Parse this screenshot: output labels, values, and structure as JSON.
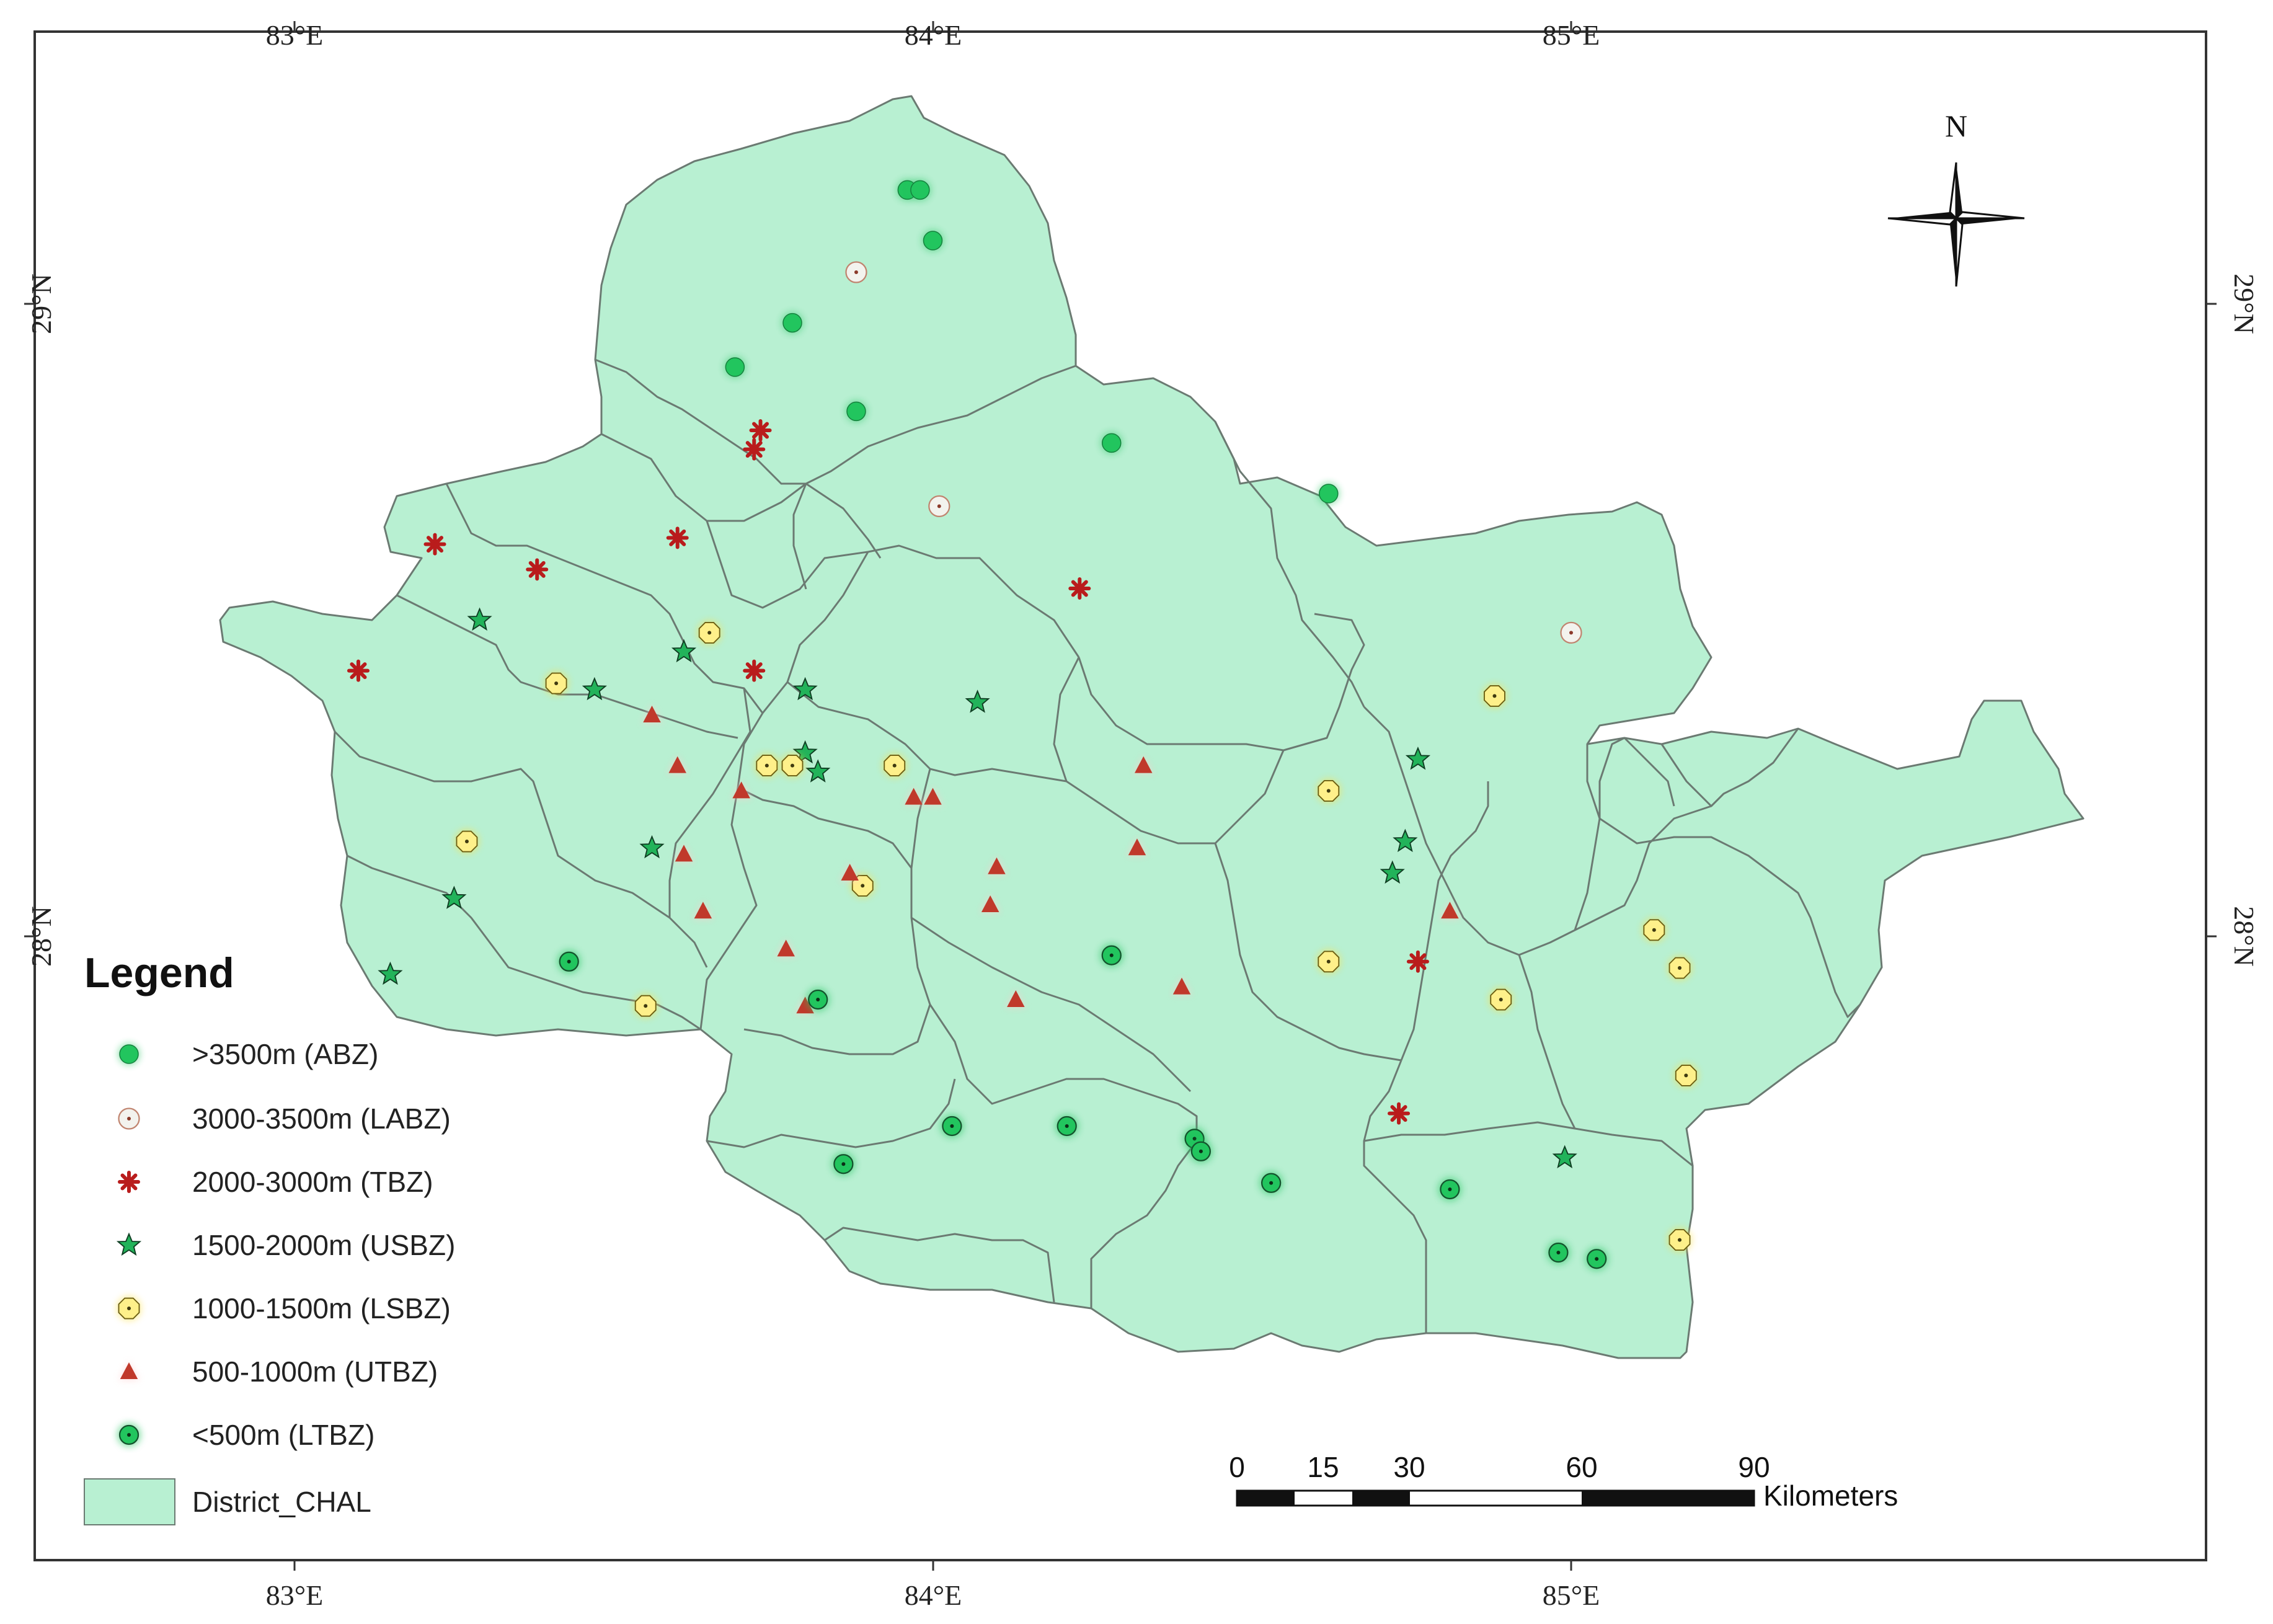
{
  "graticule": {
    "lon_labels": [
      "83°E",
      "84°E",
      "85°E"
    ],
    "lat_labels": [
      "29°N",
      "28°N"
    ]
  },
  "north_arrow": {
    "label": "N"
  },
  "legend": {
    "title": "Legend",
    "items": [
      {
        "symbol": "green-circle",
        "label": ">3500m (ABZ)",
        "color": "#22c55e"
      },
      {
        "symbol": "ring-star",
        "label": "3000-3500m (LABZ)",
        "color": "#b45309"
      },
      {
        "symbol": "red-asterisk",
        "label": "2000-3000m (TBZ)",
        "color": "#b91c1c"
      },
      {
        "symbol": "green-star",
        "label": "1500-2000m (USBZ)",
        "color": "#16a34a"
      },
      {
        "symbol": "yellow-octagon",
        "label": "1000-1500m (LSBZ)",
        "color": "#fde047"
      },
      {
        "symbol": "red-triangle",
        "label": "500-1000m (UTBZ)",
        "color": "#c0392b"
      },
      {
        "symbol": "green-dot-circle",
        "label": "<500m (LTBZ)",
        "color": "#22c55e"
      },
      {
        "symbol": "district-fill",
        "label": "District_CHAL",
        "color": "#b8f0d2"
      }
    ]
  },
  "scale_bar": {
    "ticks": [
      "0",
      "15",
      "30",
      "60",
      "90"
    ],
    "unit": "Kilometers"
  },
  "colors": {
    "district_fill": "#b8f0d2",
    "district_border": "#6b7a72",
    "frame": "#333333"
  },
  "sites": {
    "ABZ": [
      [
        83.96,
        29.18
      ],
      [
        83.98,
        29.18
      ],
      [
        84.0,
        29.1
      ],
      [
        83.78,
        28.97
      ],
      [
        83.69,
        28.9
      ],
      [
        83.88,
        28.83
      ],
      [
        84.28,
        28.78
      ],
      [
        84.62,
        28.7
      ]
    ],
    "LABZ": [
      [
        83.88,
        29.05
      ],
      [
        84.01,
        28.68
      ],
      [
        85.0,
        28.48
      ]
    ],
    "TBZ": [
      [
        83.73,
        28.8
      ],
      [
        83.72,
        28.77
      ],
      [
        83.22,
        28.62
      ],
      [
        83.38,
        28.58
      ],
      [
        83.6,
        28.63
      ],
      [
        84.23,
        28.55
      ],
      [
        83.1,
        28.42
      ],
      [
        83.72,
        28.42
      ],
      [
        84.76,
        27.96
      ],
      [
        84.73,
        27.72
      ]
    ],
    "USBZ": [
      [
        83.29,
        28.5
      ],
      [
        83.61,
        28.45
      ],
      [
        83.47,
        28.39
      ],
      [
        83.8,
        28.39
      ],
      [
        84.07,
        28.37
      ],
      [
        83.8,
        28.29
      ],
      [
        83.82,
        28.26
      ],
      [
        83.56,
        28.14
      ],
      [
        83.25,
        28.06
      ],
      [
        83.15,
        27.94
      ],
      [
        84.99,
        27.65
      ],
      [
        84.76,
        28.28
      ],
      [
        84.74,
        28.15
      ],
      [
        84.72,
        28.1
      ]
    ],
    "LSBZ": [
      [
        83.65,
        28.48
      ],
      [
        83.41,
        28.4
      ],
      [
        83.74,
        28.27
      ],
      [
        83.78,
        28.27
      ],
      [
        83.94,
        28.27
      ],
      [
        83.27,
        28.15
      ],
      [
        83.89,
        28.08
      ],
      [
        83.55,
        27.89
      ],
      [
        84.62,
        28.23
      ],
      [
        84.62,
        27.96
      ],
      [
        84.88,
        28.38
      ],
      [
        84.89,
        27.9
      ],
      [
        85.13,
        28.01
      ],
      [
        85.17,
        27.95
      ],
      [
        85.18,
        27.78
      ],
      [
        85.17,
        27.52
      ]
    ],
    "UTBZ": [
      [
        83.56,
        28.35
      ],
      [
        83.6,
        28.27
      ],
      [
        83.7,
        28.23
      ],
      [
        83.61,
        28.13
      ],
      [
        83.64,
        28.04
      ],
      [
        83.77,
        27.98
      ],
      [
        83.8,
        27.89
      ],
      [
        83.87,
        28.1
      ],
      [
        83.97,
        28.22
      ],
      [
        84.0,
        28.22
      ],
      [
        84.1,
        28.11
      ],
      [
        84.09,
        28.05
      ],
      [
        84.13,
        27.9
      ],
      [
        84.33,
        28.27
      ],
      [
        84.32,
        28.14
      ],
      [
        84.39,
        27.92
      ],
      [
        84.81,
        28.04
      ]
    ],
    "LTBZ": [
      [
        83.43,
        27.96
      ],
      [
        83.82,
        27.9
      ],
      [
        84.28,
        27.97
      ],
      [
        84.03,
        27.7
      ],
      [
        84.21,
        27.7
      ],
      [
        83.86,
        27.64
      ],
      [
        84.41,
        27.68
      ],
      [
        84.42,
        27.66
      ],
      [
        84.53,
        27.61
      ],
      [
        84.81,
        27.6
      ],
      [
        84.98,
        27.5
      ],
      [
        85.04,
        27.49
      ]
    ]
  }
}
